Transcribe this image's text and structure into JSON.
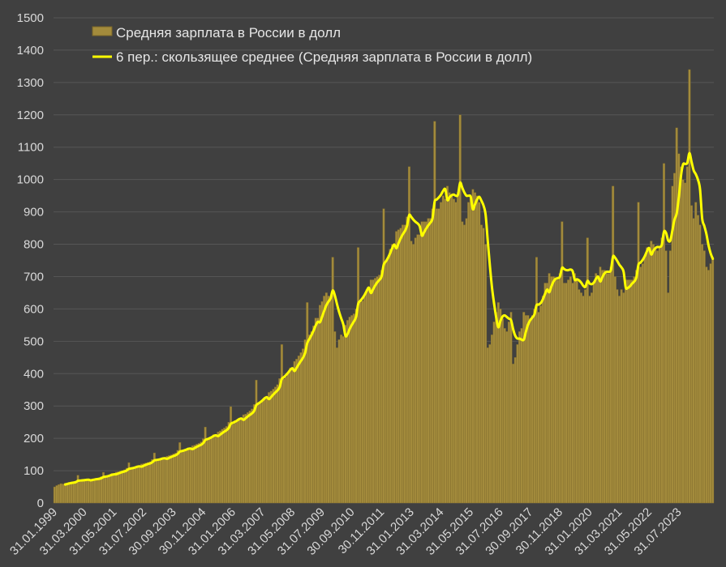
{
  "chart_data": {
    "type": "bar",
    "colors": {
      "background": "#404040",
      "bar": "#a38b3c",
      "bar_edge": "#7a6628",
      "line": "#ffff00",
      "grid": "#565656",
      "text": "#d9d9d9"
    },
    "ylim": [
      0,
      1500
    ],
    "y_ticks": [
      0,
      100,
      200,
      300,
      400,
      500,
      600,
      700,
      800,
      900,
      1000,
      1100,
      1200,
      1300,
      1400,
      1500
    ],
    "grid": "horizontal",
    "legend": {
      "placement": "top-left",
      "entries": [
        {
          "label": "Средняя зарплата в России в долл",
          "kind": "bar"
        },
        {
          "label": "6 пер.: скользящее среднее (Средняя зарплата в России в долл)",
          "kind": "line"
        }
      ]
    },
    "x_tick_labels": [
      "31.01.1999",
      "31.03.2000",
      "31.05.2001",
      "31.07.2002",
      "30.09.2003",
      "30.11.2004",
      "31.01.2006",
      "31.03.2007",
      "31.05.2008",
      "31.07.2009",
      "30.09.2010",
      "30.11.2011",
      "31.01.2013",
      "31.03.2014",
      "31.05.2015",
      "31.07.2016",
      "30.09.2017",
      "30.11.2018",
      "31.01.2020",
      "31.03.2021",
      "31.05.2022",
      "31.07.2023"
    ],
    "x_start": "1999-01",
    "monthly_values": [
      50,
      54,
      57,
      60,
      59,
      62,
      62,
      64,
      66,
      66,
      68,
      86,
      66,
      68,
      70,
      72,
      70,
      74,
      75,
      76,
      76,
      78,
      82,
      95,
      82,
      84,
      88,
      92,
      91,
      96,
      97,
      99,
      101,
      103,
      108,
      125,
      105,
      107,
      112,
      116,
      114,
      121,
      122,
      124,
      126,
      128,
      135,
      155,
      130,
      131,
      136,
      140,
      138,
      145,
      147,
      149,
      152,
      155,
      163,
      187,
      158,
      160,
      166,
      171,
      168,
      177,
      179,
      182,
      185,
      189,
      199,
      235,
      195,
      199,
      205,
      212,
      210,
      220,
      223,
      228,
      232,
      237,
      250,
      298,
      244,
      247,
      255,
      263,
      260,
      273,
      275,
      280,
      285,
      291,
      305,
      380,
      305,
      308,
      318,
      328,
      325,
      342,
      346,
      352,
      359,
      366,
      385,
      490,
      384,
      390,
      403,
      418,
      415,
      438,
      445,
      455,
      465,
      477,
      505,
      620,
      520,
      530,
      548,
      572,
      572,
      612,
      623,
      640,
      650,
      640,
      630,
      760,
      530,
      480,
      505,
      520,
      515,
      550,
      565,
      575,
      580,
      585,
      600,
      790,
      620,
      625,
      640,
      660,
      660,
      690,
      690,
      695,
      700,
      705,
      720,
      910,
      750,
      760,
      785,
      800,
      790,
      840,
      845,
      850,
      860,
      860,
      885,
      1040,
      810,
      800,
      820,
      830,
      830,
      870,
      870,
      870,
      880,
      880,
      910,
      1180,
      910,
      910,
      930,
      950,
      940,
      980,
      960,
      950,
      940,
      930,
      960,
      1200,
      870,
      860,
      880,
      930,
      940,
      970,
      960,
      950,
      930,
      860,
      850,
      800,
      480,
      490,
      520,
      560,
      590,
      620,
      600,
      570,
      540,
      530,
      560,
      590,
      430,
      450,
      490,
      530,
      540,
      590,
      580,
      580,
      570,
      580,
      600,
      760,
      590,
      610,
      640,
      680,
      680,
      710,
      700,
      700,
      690,
      690,
      710,
      870,
      680,
      680,
      690,
      700,
      680,
      710,
      690,
      660,
      650,
      640,
      660,
      820,
      640,
      650,
      680,
      710,
      700,
      730,
      720,
      720,
      710,
      710,
      730,
      980,
      700,
      660,
      640,
      660,
      650,
      690,
      690,
      690,
      690,
      700,
      720,
      930,
      730,
      740,
      760,
      790,
      780,
      810,
      800,
      790,
      780,
      790,
      820,
      1050,
      780,
      650,
      780,
      980,
      1020,
      1160,
      1080,
      1040,
      1000,
      990,
      1040,
      1340,
      920,
      880,
      930,
      890,
      860,
      800,
      780,
      730,
      720,
      740,
      760
    ],
    "moving_average": {
      "period": 6,
      "name": "6 пер.: скользящее среднее (Средняя зарплата в России в долл)"
    }
  }
}
